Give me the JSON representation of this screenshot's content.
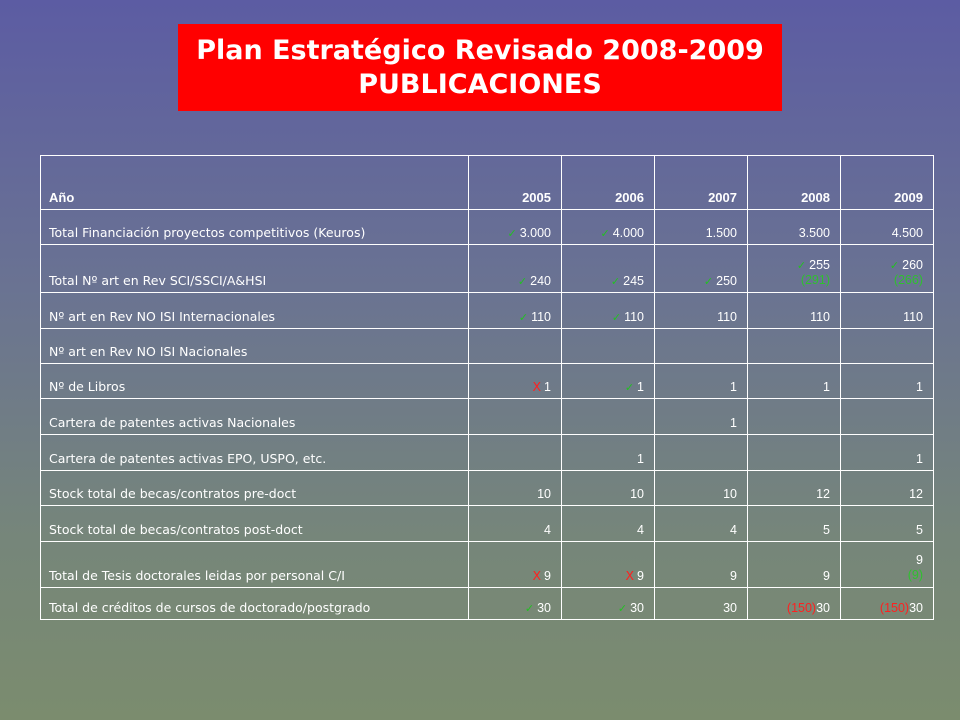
{
  "title": {
    "line1": "Plan Estratégico Revisado 2008-2009",
    "line2": "PUBLICACIONES"
  },
  "header": {
    "label": "Año",
    "years": [
      "2005",
      "2006",
      "2007",
      "2008",
      "2009"
    ]
  },
  "rows": {
    "r0": {
      "label": "Total Financiación proyectos competitivos (Keuros)",
      "c0": {
        "check": "✓",
        "value": "3.000"
      },
      "c1": {
        "check": "✓",
        "value": "4.000"
      },
      "c2": {
        "value": "1.500"
      },
      "c3": {
        "value": "3.500"
      },
      "c4": {
        "value": "4.500"
      }
    },
    "r1": {
      "label": "Total Nº art en Rev SCI/SSCI/A&HSI",
      "c0": {
        "check": "✓",
        "value": "240"
      },
      "c1": {
        "check": "✓",
        "value": "245"
      },
      "c2": {
        "check": "✓",
        "value": "250"
      },
      "c3": {
        "check": "✓",
        "value": "255",
        "note": "(291)"
      },
      "c4": {
        "check": "✓",
        "value": "260",
        "note": "(266)"
      }
    },
    "r2": {
      "label": "Nº art en Rev NO ISI Internacionales",
      "c0": {
        "check": "✓",
        "value": "110"
      },
      "c1": {
        "check": "✓",
        "value": "110"
      },
      "c2": {
        "value": "110"
      },
      "c3": {
        "value": "110"
      },
      "c4": {
        "value": "110"
      }
    },
    "r3": {
      "label": "Nº art en Rev NO ISI Nacionales"
    },
    "r4": {
      "label": "Nº de Libros",
      "c0": {
        "cross": "X",
        "value": "1"
      },
      "c1": {
        "check": "✓",
        "value": "1"
      },
      "c2": {
        "value": "1"
      },
      "c3": {
        "value": "1"
      },
      "c4": {
        "value": "1"
      }
    },
    "r5": {
      "label": "Cartera de patentes activas Nacionales",
      "c2": {
        "value": "1"
      }
    },
    "r6": {
      "label": "Cartera de patentes activas EPO, USPO, etc.",
      "c1": {
        "value": "1"
      },
      "c4": {
        "value": "1"
      }
    },
    "r7": {
      "label": "Stock total de becas/contratos pre-doct",
      "c0": {
        "value": "10"
      },
      "c1": {
        "value": "10"
      },
      "c2": {
        "value": "10"
      },
      "c3": {
        "value": "12"
      },
      "c4": {
        "value": "12"
      }
    },
    "r8": {
      "label": "Stock total de becas/contratos post-doct",
      "c0": {
        "value": "4"
      },
      "c1": {
        "value": "4"
      },
      "c2": {
        "value": "4"
      },
      "c3": {
        "value": "5"
      },
      "c4": {
        "value": "5"
      }
    },
    "r9": {
      "label": "Total de Tesis doctorales leidas por personal C/I",
      "c0": {
        "cross": "X",
        "value": "9"
      },
      "c1": {
        "cross": "X",
        "value": "9"
      },
      "c2": {
        "value": "9"
      },
      "c3": {
        "value": "9"
      },
      "c4": {
        "value": "9",
        "note": "(9)"
      }
    },
    "r10": {
      "label": "Total de créditos de cursos de doctorado/postgrado",
      "c0": {
        "check": "✓",
        "value": "30"
      },
      "c1": {
        "check": "✓",
        "value": "30"
      },
      "c2": {
        "value": "30"
      },
      "c3": {
        "prefix": "(150)",
        "value": "30"
      },
      "c4": {
        "prefix": "(150)",
        "value": "30"
      }
    }
  },
  "colors": {
    "title_bg": "#ff0000",
    "check": "#22c022",
    "cross": "#ff2020",
    "note_green": "#2fc02f",
    "prefix_red": "#ff2020"
  }
}
